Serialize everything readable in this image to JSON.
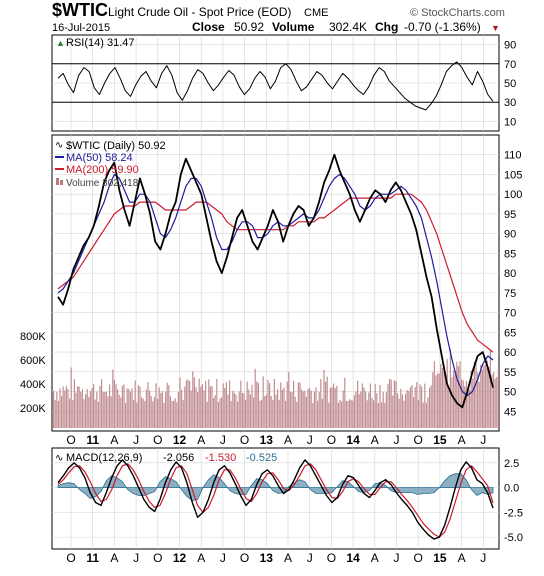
{
  "header": {
    "symbol": "$WTIC",
    "name": "Light Crude Oil - Spot Price (EOD)",
    "exchange": "CME",
    "watermark": "© StockCharts.com",
    "date": "16-Jul-2015",
    "close_label": "Close",
    "close_value": "50.92",
    "volume_label": "Volume",
    "volume_value": "302.4K",
    "chg_label": "Chg",
    "chg_value": "-0.70 (-1.36%)",
    "chg_arrow": "▼"
  },
  "colors": {
    "price": "#000000",
    "ma50": "#1c1c9e",
    "ma200": "#cc1b2e",
    "volume": "#b97a7e",
    "macd": "#000000",
    "signal": "#cc1b2e",
    "histogram": "#2b6f91",
    "rsi": "#000000",
    "chg": "#b01828"
  },
  "chart_data": [
    {
      "type": "line",
      "panel": "RSI",
      "legend": "RSI(14) 31.47",
      "ylim": [
        0,
        100
      ],
      "y_ticks": [
        10,
        30,
        50,
        70,
        90
      ],
      "reference_lines": [
        30,
        70
      ],
      "x_tick_labels": [
        "O",
        "11",
        "A",
        "J",
        "O",
        "12",
        "A",
        "J",
        "O",
        "13",
        "A",
        "J",
        "O",
        "14",
        "A",
        "J",
        "O",
        "15",
        "A",
        "J"
      ],
      "series": [
        {
          "values": [
            55,
            60,
            48,
            40,
            58,
            66,
            62,
            45,
            38,
            50,
            60,
            66,
            55,
            42,
            36,
            48,
            57,
            62,
            52,
            45,
            60,
            68,
            58,
            40,
            32,
            42,
            55,
            64,
            60,
            50,
            42,
            48,
            56,
            63,
            58,
            46,
            38,
            44,
            55,
            62,
            56,
            44,
            52,
            66,
            70,
            64,
            52,
            42,
            46,
            54,
            62,
            58,
            50,
            44,
            52,
            60,
            55,
            48,
            42,
            38,
            46,
            58,
            66,
            62,
            52,
            46,
            40,
            34,
            30,
            26,
            24,
            22,
            28,
            36,
            48,
            62,
            68,
            72,
            66,
            56,
            48,
            62,
            52,
            38,
            31
          ]
        }
      ]
    },
    {
      "type": "line",
      "panel": "Price",
      "legend": [
        "$WTIC (Daily) 50.92",
        "MA(50) 58.24",
        "MA(200) 59.90",
        "Volume 302,418"
      ],
      "ylim": [
        40,
        115
      ],
      "y_ticks": [
        45,
        50,
        55,
        60,
        65,
        70,
        75,
        80,
        85,
        90,
        95,
        100,
        105,
        110
      ],
      "volume_axis": [
        "200K",
        "400K",
        "600K",
        "800K"
      ],
      "x_tick_labels": [
        "O",
        "11",
        "A",
        "J",
        "O",
        "12",
        "A",
        "J",
        "O",
        "13",
        "A",
        "J",
        "O",
        "14",
        "A",
        "J",
        "O",
        "15",
        "A",
        "J"
      ],
      "series": [
        {
          "name": "$WTIC (Daily) 50.92",
          "values": [
            74,
            72,
            76,
            81,
            84,
            87,
            89,
            92,
            97,
            103,
            106,
            108,
            101,
            96,
            92,
            98,
            104,
            100,
            95,
            88,
            86,
            90,
            95,
            98,
            105,
            109,
            106,
            103,
            100,
            94,
            88,
            83,
            80,
            84,
            89,
            94,
            96,
            92,
            88,
            86,
            89,
            92,
            96,
            93,
            88,
            92,
            95,
            97,
            96,
            92,
            94,
            98,
            103,
            106,
            110,
            106,
            103,
            100,
            96,
            93,
            96,
            99,
            101,
            100,
            98,
            101,
            103,
            101,
            98,
            95,
            91,
            85,
            79,
            74,
            66,
            59,
            52,
            49,
            47,
            46,
            50,
            55,
            59,
            60,
            56,
            51
          ]
        },
        {
          "name": "MA(50) 58.24",
          "values": [
            75,
            76,
            78,
            80,
            83,
            86,
            89,
            92,
            95,
            98,
            102,
            105,
            104,
            101,
            98,
            98,
            100,
            100,
            98,
            94,
            90,
            89,
            91,
            94,
            98,
            102,
            104,
            104,
            102,
            98,
            94,
            89,
            86,
            86,
            88,
            91,
            93,
            93,
            92,
            89,
            89,
            90,
            92,
            93,
            92,
            92,
            93,
            94,
            95,
            94,
            94,
            96,
            99,
            102,
            104,
            105,
            104,
            102,
            100,
            97,
            96,
            97,
            99,
            100,
            100,
            100,
            101,
            102,
            101,
            99,
            97,
            94,
            89,
            84,
            78,
            71,
            64,
            58,
            53,
            50,
            49,
            50,
            53,
            57,
            59,
            58
          ]
        },
        {
          "name": "MA(200) 59.90",
          "values": [
            76,
            77,
            78,
            79,
            81,
            83,
            85,
            87,
            89,
            91,
            93,
            95,
            96,
            97,
            97,
            97,
            98,
            98,
            98,
            98,
            97,
            96,
            96,
            96,
            96,
            96,
            97,
            98,
            98,
            98,
            97,
            96,
            95,
            93,
            92,
            91,
            91,
            91,
            91,
            91,
            91,
            91,
            91,
            91,
            91,
            92,
            92,
            93,
            93,
            93,
            93,
            94,
            94,
            95,
            96,
            97,
            98,
            99,
            99,
            99,
            99,
            99,
            99,
            99,
            99,
            99,
            100,
            100,
            100,
            100,
            99,
            98,
            96,
            93,
            90,
            86,
            82,
            78,
            74,
            70,
            67,
            65,
            63,
            62,
            61,
            60
          ]
        }
      ]
    },
    {
      "type": "line",
      "panel": "MACD",
      "legend": [
        "MACD(12,26,9)",
        "-2.056",
        "-1.530",
        "-0.525"
      ],
      "ylim": [
        -6.2,
        4.0
      ],
      "y_ticks": [
        "2.5",
        "0.0",
        "-2.5",
        "-5.0"
      ],
      "x_tick_labels": [
        "O",
        "11",
        "A",
        "J",
        "O",
        "12",
        "A",
        "J",
        "O",
        "13",
        "A",
        "J",
        "O",
        "14",
        "A",
        "J",
        "O",
        "15",
        "A",
        "J"
      ],
      "series": [
        {
          "name": "MACD(12,26,9)",
          "values": [
            0.5,
            1.2,
            2.0,
            2.5,
            2.0,
            1.0,
            -0.5,
            -1.5,
            -1.8,
            -0.5,
            1.0,
            2.2,
            2.8,
            2.2,
            1.2,
            0.0,
            -1.2,
            -2.0,
            -2.4,
            -1.2,
            0.5,
            1.8,
            2.6,
            2.0,
            0.5,
            -1.5,
            -3.0,
            -2.5,
            -1.2,
            0.5,
            1.8,
            2.2,
            1.5,
            0.4,
            -0.8,
            -1.8,
            -1.2,
            0.3,
            1.4,
            1.8,
            1.2,
            0.2,
            -0.6,
            -0.2,
            0.8,
            2.0,
            2.8,
            2.2,
            1.2,
            0.2,
            -0.8,
            -1.5,
            -1.0,
            0.3,
            1.2,
            1.0,
            0.2,
            -0.6,
            -1.0,
            -0.3,
            0.5,
            0.8,
            0.3,
            -0.5,
            -1.2,
            -1.8,
            -2.5,
            -3.5,
            -4.2,
            -4.8,
            -5.2,
            -5.0,
            -3.8,
            -2.0,
            0.0,
            1.8,
            2.6,
            2.0,
            0.8,
            0.4,
            -0.5,
            -2.056
          ]
        },
        {
          "name": "Signal",
          "values": [
            0.3,
            0.8,
            1.5,
            2.1,
            2.2,
            1.6,
            0.6,
            -0.6,
            -1.4,
            -1.2,
            -0.2,
            1.2,
            2.2,
            2.4,
            1.8,
            0.8,
            -0.4,
            -1.4,
            -2.0,
            -1.8,
            -0.6,
            0.9,
            2.0,
            2.2,
            1.4,
            -0.2,
            -1.8,
            -2.5,
            -2.0,
            -0.8,
            0.8,
            1.8,
            1.8,
            1.0,
            -0.1,
            -1.1,
            -1.4,
            -0.6,
            0.6,
            1.4,
            1.5,
            0.8,
            -0.1,
            -0.3,
            0.3,
            1.2,
            2.2,
            2.4,
            1.8,
            0.8,
            -0.2,
            -1.0,
            -1.1,
            -0.4,
            0.6,
            0.9,
            0.6,
            -0.1,
            -0.7,
            -0.7,
            0.0,
            0.6,
            0.6,
            0.0,
            -0.7,
            -1.3,
            -2.0,
            -2.8,
            -3.6,
            -4.2,
            -4.7,
            -5.0,
            -4.5,
            -3.2,
            -1.4,
            0.4,
            1.8,
            2.2,
            1.6,
            0.9,
            0.2,
            -1.53
          ]
        },
        {
          "name": "Histogram",
          "values": [
            0.2,
            0.4,
            0.5,
            0.4,
            -0.2,
            -0.6,
            -1.1,
            -0.9,
            -0.4,
            0.7,
            1.2,
            1.0,
            0.6,
            -0.2,
            -0.6,
            -0.8,
            -0.8,
            -0.6,
            -0.4,
            0.6,
            1.1,
            0.9,
            0.6,
            -0.2,
            -0.9,
            -1.3,
            -1.2,
            0.0,
            0.8,
            1.3,
            1.0,
            0.4,
            -0.3,
            -0.6,
            -0.7,
            -0.7,
            0.2,
            0.9,
            0.8,
            0.4,
            -0.3,
            -0.6,
            -0.5,
            0.1,
            0.5,
            0.8,
            0.6,
            -0.2,
            -0.6,
            -0.6,
            -0.6,
            -0.5,
            0.1,
            0.7,
            0.6,
            0.1,
            -0.4,
            -0.5,
            -0.3,
            0.4,
            0.5,
            0.2,
            -0.3,
            -0.5,
            -0.5,
            -0.5,
            -0.5,
            -0.7,
            -0.6,
            -0.6,
            -0.5,
            0.0,
            0.7,
            1.2,
            1.4,
            1.4,
            0.8,
            -0.2,
            -0.8,
            -0.5,
            -0.7,
            -0.525
          ]
        }
      ]
    }
  ]
}
